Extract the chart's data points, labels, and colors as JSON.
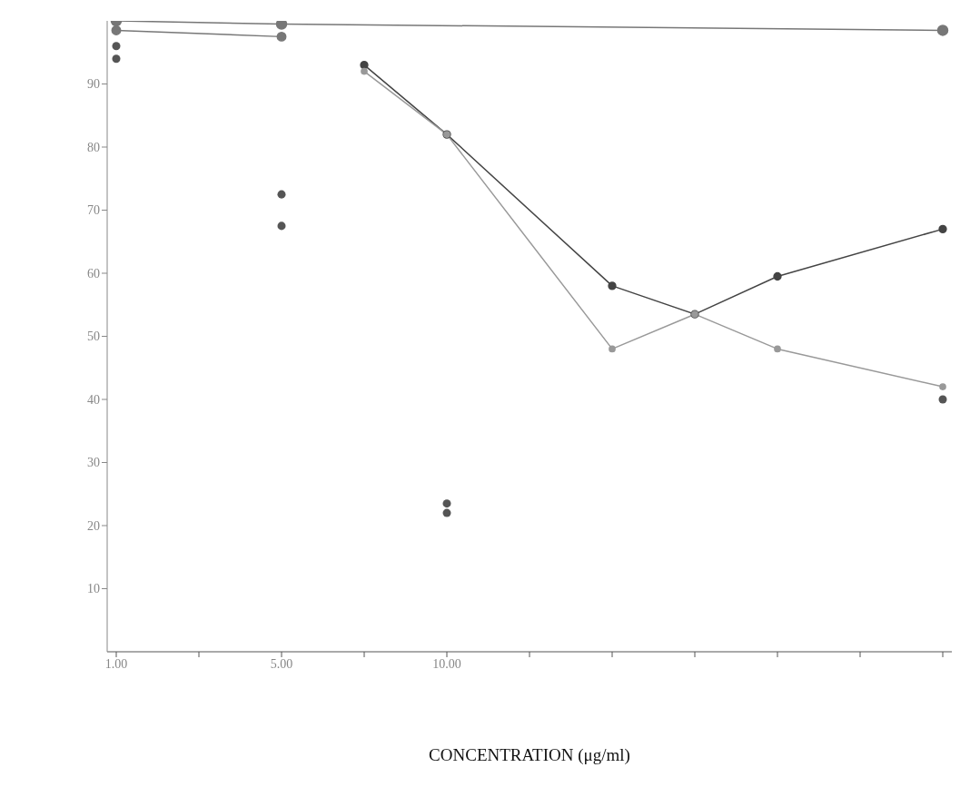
{
  "chart_data": {
    "type": "line",
    "xlabel": "CONCENTRATION (μg/ml)",
    "categories": [
      "1.00",
      null,
      "5.00",
      null,
      "10.00",
      null,
      null,
      null,
      null,
      null,
      null
    ],
    "series": [
      {
        "color": "#777777",
        "values": [
          100,
          null,
          99.5,
          null,
          null,
          null,
          null,
          null,
          null,
          null,
          98.5
        ]
      },
      {
        "color": "#777777",
        "values": [
          98.5,
          null,
          97.5,
          null,
          null,
          null,
          null,
          null,
          null,
          null,
          null
        ]
      },
      {
        "color": "#444444",
        "values": [
          null,
          null,
          null,
          93,
          82,
          null,
          58,
          53.5,
          59.5,
          null,
          67
        ]
      },
      {
        "color": "#999999",
        "values": [
          null,
          null,
          null,
          92,
          82,
          null,
          48,
          53.5,
          48,
          null,
          42
        ]
      },
      {
        "type": "scatter",
        "color": "#555555",
        "values": [
          96,
          null,
          72.5,
          null,
          23.5,
          null,
          null,
          null,
          null,
          null,
          40
        ]
      },
      {
        "type": "scatter",
        "color": "#555555",
        "values": [
          94,
          null,
          67.5,
          null,
          22,
          null,
          null,
          null,
          null,
          null,
          null
        ]
      }
    ],
    "ylim": [
      0,
      100
    ],
    "yticks": [
      10,
      20,
      30,
      40,
      50,
      60,
      70,
      80,
      90
    ],
    "grid": false,
    "marker": "circle",
    "line_style": "solid"
  }
}
